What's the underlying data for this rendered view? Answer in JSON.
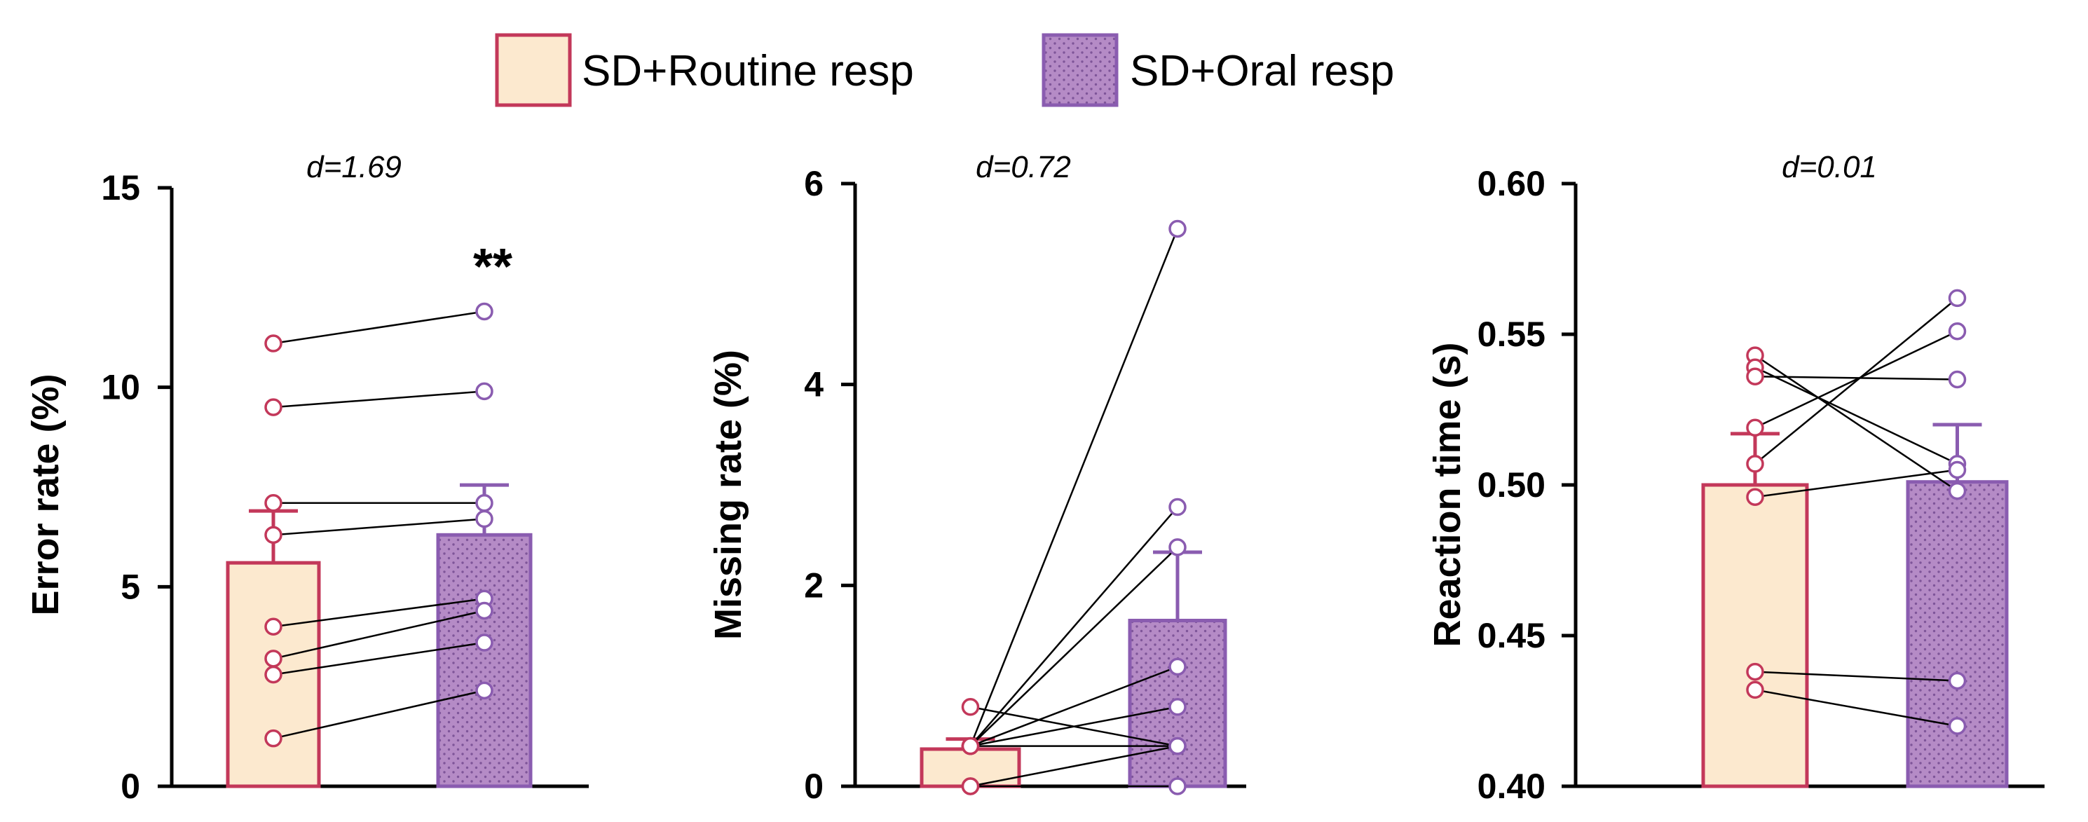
{
  "legend": [
    {
      "label": "SD+Routine resp",
      "fill": "#FCE9CF",
      "stroke": "#C3385A",
      "pattern": "none"
    },
    {
      "label": "SD+Oral resp",
      "fill": "#B58BC6",
      "stroke": "#8A5CB0",
      "pattern": "dots"
    }
  ],
  "colors": {
    "routine_fill": "#FCE9CF",
    "routine_stroke": "#C3385A",
    "oral_fill": "#B58BC6",
    "oral_stroke": "#8A5CB0",
    "oral_dot": "#7E5599"
  },
  "chart_data": [
    {
      "type": "bar",
      "ylabel": "Error rate (%)",
      "effect_label": "d=1.69",
      "significance": "**",
      "ylim": [
        0,
        15
      ],
      "yticks": [
        0,
        5,
        10,
        15
      ],
      "tick_labels": [
        "0",
        "5",
        "10",
        "15"
      ],
      "categories": [
        "SD+Routine resp",
        "SD+Oral resp"
      ],
      "series": [
        {
          "name": "SD+Routine resp",
          "mean": 5.6,
          "error": 1.3
        },
        {
          "name": "SD+Oral resp",
          "mean": 6.3,
          "error": 1.25
        }
      ],
      "pairs": [
        [
          11.1,
          11.9
        ],
        [
          9.5,
          9.9
        ],
        [
          7.1,
          7.1
        ],
        [
          6.3,
          6.7
        ],
        [
          4.0,
          4.7
        ],
        [
          3.2,
          4.4
        ],
        [
          2.8,
          3.6
        ],
        [
          1.2,
          2.4
        ]
      ]
    },
    {
      "type": "bar",
      "ylabel": "Missing rate (%)",
      "effect_label": "d=0.72",
      "significance": "",
      "ylim": [
        0,
        6
      ],
      "yticks": [
        0,
        2,
        4,
        6
      ],
      "tick_labels": [
        "0",
        "2",
        "4",
        "6"
      ],
      "categories": [
        "SD+Routine resp",
        "SD+Oral resp"
      ],
      "series": [
        {
          "name": "SD+Routine resp",
          "mean": 0.37,
          "error": 0.1
        },
        {
          "name": "SD+Oral resp",
          "mean": 1.65,
          "error": 0.68
        }
      ],
      "pairs": [
        [
          0.4,
          5.55
        ],
        [
          0.4,
          2.78
        ],
        [
          0.4,
          2.38
        ],
        [
          0.4,
          1.19
        ],
        [
          0.4,
          0.79
        ],
        [
          0.4,
          0.4
        ],
        [
          0.79,
          0.4
        ],
        [
          0.0,
          0.0
        ],
        [
          0.0,
          0.4
        ]
      ]
    },
    {
      "type": "bar",
      "ylabel": "Reaction time (s)",
      "effect_label": "d=0.01",
      "significance": "",
      "ylim": [
        0.4,
        0.6
      ],
      "yticks": [
        0.4,
        0.45,
        0.5,
        0.55,
        0.6
      ],
      "tick_labels": [
        "0.40",
        "0.45",
        "0.50",
        "0.55",
        "0.60"
      ],
      "categories": [
        "SD+Routine resp",
        "SD+Oral resp"
      ],
      "series": [
        {
          "name": "SD+Routine resp",
          "mean": 0.5,
          "error": 0.017
        },
        {
          "name": "SD+Oral resp",
          "mean": 0.501,
          "error": 0.019
        }
      ],
      "pairs": [
        [
          0.543,
          0.498
        ],
        [
          0.539,
          0.507
        ],
        [
          0.536,
          0.535
        ],
        [
          0.519,
          0.551
        ],
        [
          0.507,
          0.562
        ],
        [
          0.496,
          0.505
        ],
        [
          0.438,
          0.435
        ],
        [
          0.432,
          0.42
        ]
      ]
    }
  ]
}
